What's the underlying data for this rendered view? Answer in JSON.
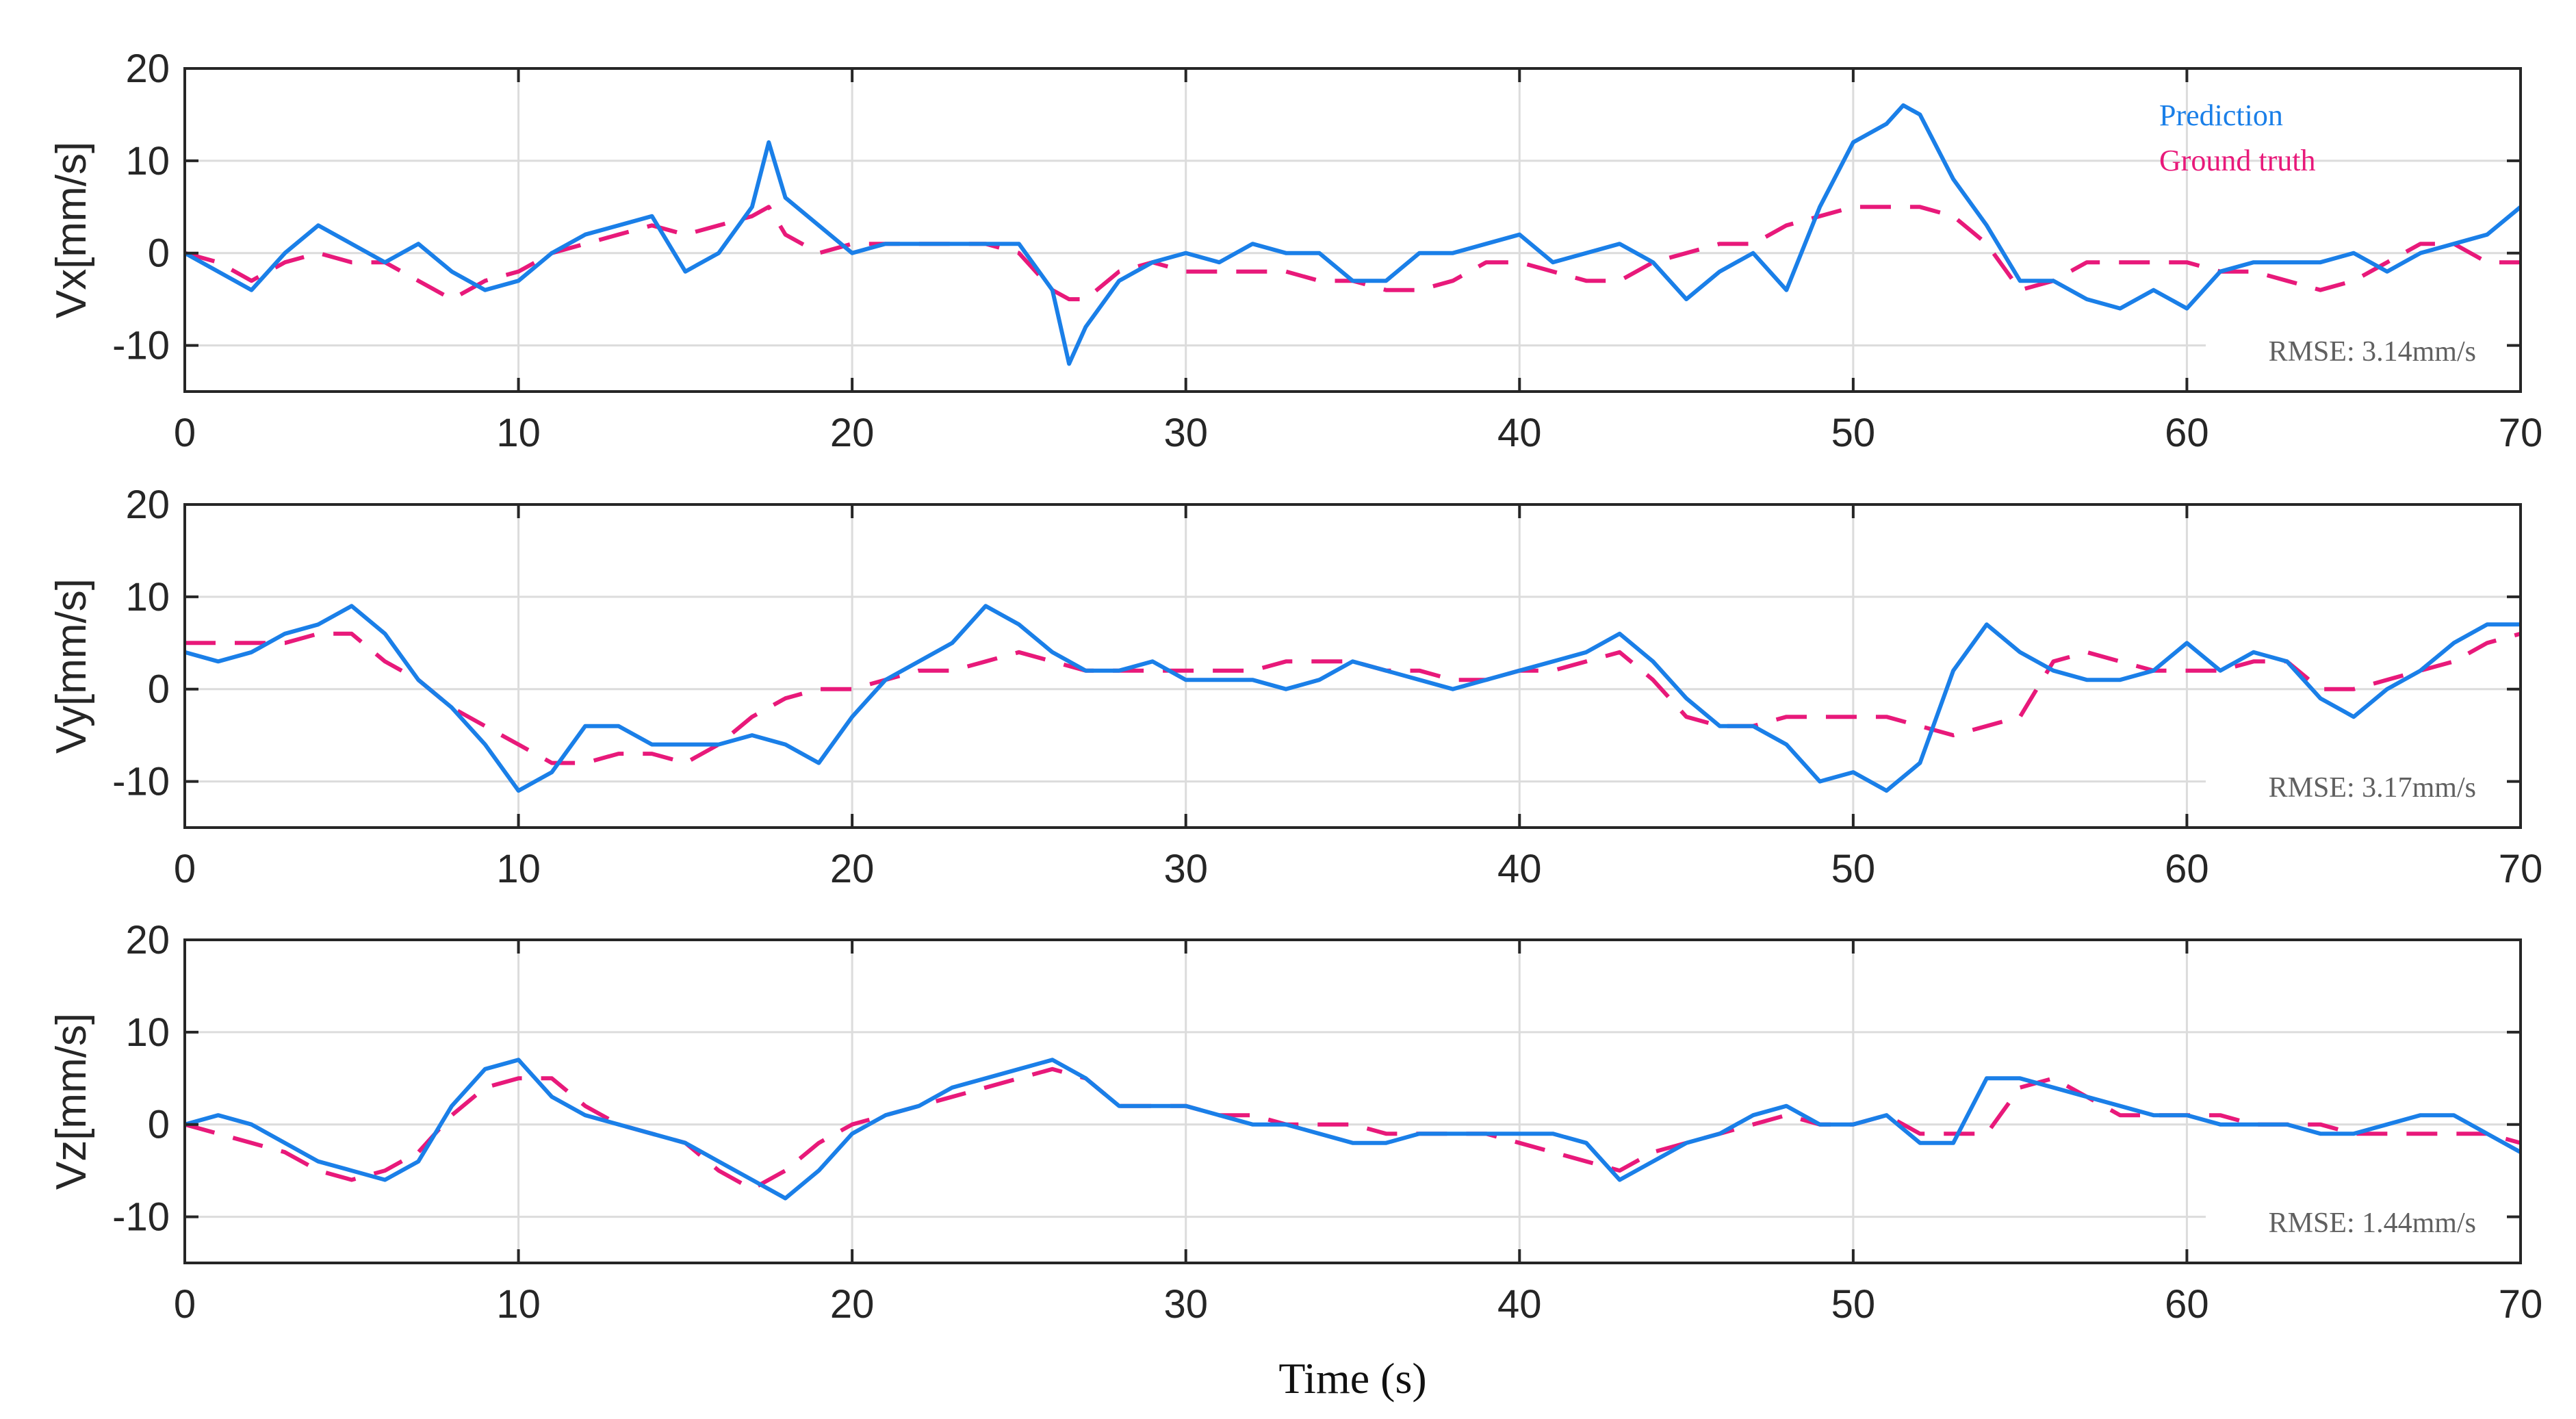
{
  "chart_data": [
    {
      "type": "line",
      "title": "",
      "xlabel": "",
      "ylabel": "Vx[mm/s]",
      "xlim": [
        0,
        70
      ],
      "ylim": [
        -15,
        20
      ],
      "xticks": [
        "0",
        "10",
        "20",
        "30",
        "40",
        "50",
        "60",
        "70"
      ],
      "yticks": [
        "-10",
        "0",
        "10",
        "20"
      ],
      "grid": true,
      "legend": {
        "position": "top-right",
        "entries": [
          "Prediction",
          "Ground truth"
        ]
      },
      "annotation": "RMSE: 3.14mm/s",
      "series": [
        {
          "name": "Prediction",
          "color": "#1a7fe8",
          "style": "solid",
          "x": [
            0,
            1,
            2,
            3,
            4,
            5,
            6,
            7,
            8,
            9,
            10,
            11,
            12,
            13,
            14,
            15,
            16,
            17,
            17.5,
            18,
            19,
            20,
            21,
            22,
            23,
            24,
            25,
            26,
            26.5,
            27,
            28,
            29,
            30,
            31,
            32,
            33,
            34,
            35,
            36,
            37,
            38,
            39,
            40,
            41,
            42,
            43,
            44,
            45,
            46,
            47,
            48,
            49,
            50,
            51,
            51.5,
            52,
            53,
            54,
            55,
            56,
            57,
            58,
            59,
            60,
            61,
            62,
            63,
            64,
            65,
            66,
            67,
            68,
            69,
            70
          ],
          "values": [
            0,
            -2,
            -4,
            0,
            3,
            1,
            -1,
            1,
            -2,
            -4,
            -3,
            0,
            2,
            3,
            4,
            -2,
            0,
            5,
            12,
            6,
            3,
            0,
            1,
            1,
            1,
            1,
            1,
            -4,
            -12,
            -8,
            -3,
            -1,
            0,
            -1,
            1,
            0,
            0,
            -3,
            -3,
            0,
            0,
            1,
            2,
            -1,
            0,
            1,
            -1,
            -5,
            -2,
            0,
            -4,
            5,
            12,
            14,
            16,
            15,
            8,
            3,
            -3,
            -3,
            -5,
            -6,
            -4,
            -6,
            -2,
            -1,
            -1,
            -1,
            0,
            -2,
            0,
            1,
            2,
            5
          ]
        },
        {
          "name": "Ground truth",
          "color": "#e8197a",
          "style": "dashed",
          "x": [
            0,
            1,
            2,
            3,
            4,
            5,
            6,
            7,
            8,
            9,
            10,
            11,
            12,
            13,
            14,
            15,
            16,
            17,
            17.5,
            18,
            19,
            20,
            21,
            22,
            23,
            24,
            25,
            26,
            26.5,
            27,
            28,
            29,
            30,
            31,
            32,
            33,
            34,
            35,
            36,
            37,
            38,
            39,
            40,
            41,
            42,
            43,
            44,
            45,
            46,
            47,
            48,
            49,
            50,
            51,
            51.5,
            52,
            53,
            54,
            55,
            56,
            57,
            58,
            59,
            60,
            61,
            62,
            63,
            64,
            65,
            66,
            67,
            68,
            69,
            70
          ],
          "values": [
            0,
            -1,
            -3,
            -1,
            0,
            -1,
            -1,
            -3,
            -5,
            -3,
            -2,
            0,
            1,
            2,
            3,
            2,
            3,
            4,
            5,
            2,
            0,
            1,
            1,
            1,
            1,
            1,
            0,
            -4,
            -5,
            -5,
            -2,
            -1,
            -2,
            -2,
            -2,
            -2,
            -3,
            -3,
            -4,
            -4,
            -3,
            -1,
            -1,
            -2,
            -3,
            -3,
            -1,
            0,
            1,
            1,
            3,
            4,
            5,
            5,
            5,
            5,
            4,
            1,
            -4,
            -3,
            -1,
            -1,
            -1,
            -1,
            -2,
            -2,
            -3,
            -4,
            -3,
            -1,
            1,
            1,
            -1,
            -1
          ]
        }
      ]
    },
    {
      "type": "line",
      "title": "",
      "xlabel": "",
      "ylabel": "Vy[mm/s]",
      "xlim": [
        0,
        70
      ],
      "ylim": [
        -15,
        20
      ],
      "xticks": [
        "0",
        "10",
        "20",
        "30",
        "40",
        "50",
        "60",
        "70"
      ],
      "yticks": [
        "-10",
        "0",
        "10",
        "20"
      ],
      "grid": true,
      "annotation": "RMSE: 3.17mm/s",
      "series": [
        {
          "name": "Prediction",
          "color": "#1a7fe8",
          "style": "solid",
          "x": [
            0,
            1,
            2,
            3,
            4,
            5,
            6,
            7,
            8,
            9,
            10,
            11,
            12,
            13,
            14,
            15,
            16,
            17,
            18,
            19,
            20,
            21,
            22,
            23,
            24,
            25,
            26,
            27,
            28,
            29,
            30,
            31,
            32,
            33,
            34,
            35,
            36,
            37,
            38,
            39,
            40,
            41,
            42,
            43,
            44,
            45,
            46,
            47,
            48,
            49,
            50,
            51,
            52,
            53,
            54,
            55,
            56,
            57,
            58,
            59,
            60,
            61,
            62,
            63,
            64,
            65,
            66,
            67,
            68,
            69,
            70
          ],
          "values": [
            4,
            3,
            4,
            6,
            7,
            9,
            6,
            1,
            -2,
            -6,
            -11,
            -9,
            -4,
            -4,
            -6,
            -6,
            -6,
            -5,
            -6,
            -8,
            -3,
            1,
            3,
            5,
            9,
            7,
            4,
            2,
            2,
            3,
            1,
            1,
            1,
            0,
            1,
            3,
            2,
            1,
            0,
            1,
            2,
            3,
            4,
            6,
            3,
            -1,
            -4,
            -4,
            -6,
            -10,
            -9,
            -11,
            -8,
            2,
            7,
            4,
            2,
            1,
            1,
            2,
            5,
            2,
            4,
            3,
            -1,
            -3,
            0,
            2,
            5,
            7,
            7
          ]
        },
        {
          "name": "Ground truth",
          "color": "#e8197a",
          "style": "dashed",
          "x": [
            0,
            1,
            2,
            3,
            4,
            5,
            6,
            7,
            8,
            9,
            10,
            11,
            12,
            13,
            14,
            15,
            16,
            17,
            18,
            19,
            20,
            21,
            22,
            23,
            24,
            25,
            26,
            27,
            28,
            29,
            30,
            31,
            32,
            33,
            34,
            35,
            36,
            37,
            38,
            39,
            40,
            41,
            42,
            43,
            44,
            45,
            46,
            47,
            48,
            49,
            50,
            51,
            52,
            53,
            54,
            55,
            56,
            57,
            58,
            59,
            60,
            61,
            62,
            63,
            64,
            65,
            66,
            67,
            68,
            69,
            70
          ],
          "values": [
            5,
            5,
            5,
            5,
            6,
            6,
            3,
            1,
            -2,
            -4,
            -6,
            -8,
            -8,
            -7,
            -7,
            -8,
            -6,
            -3,
            -1,
            0,
            0,
            1,
            2,
            2,
            3,
            4,
            3,
            2,
            2,
            2,
            2,
            2,
            2,
            3,
            3,
            3,
            2,
            2,
            1,
            1,
            2,
            2,
            3,
            4,
            1,
            -3,
            -4,
            -4,
            -3,
            -3,
            -3,
            -3,
            -4,
            -5,
            -4,
            -3,
            3,
            4,
            3,
            2,
            2,
            2,
            3,
            3,
            0,
            0,
            1,
            2,
            3,
            5,
            6
          ]
        }
      ]
    },
    {
      "type": "line",
      "title": "",
      "xlabel": "Time (s)",
      "ylabel": "Vz[mm/s]",
      "xlim": [
        0,
        70
      ],
      "ylim": [
        -15,
        20
      ],
      "xticks": [
        "0",
        "10",
        "20",
        "30",
        "40",
        "50",
        "60",
        "70"
      ],
      "yticks": [
        "-10",
        "0",
        "10",
        "20"
      ],
      "grid": true,
      "annotation": "RMSE: 1.44mm/s",
      "series": [
        {
          "name": "Prediction",
          "color": "#1a7fe8",
          "style": "solid",
          "x": [
            0,
            1,
            2,
            3,
            4,
            5,
            6,
            7,
            8,
            9,
            10,
            11,
            12,
            13,
            14,
            15,
            16,
            17,
            18,
            19,
            20,
            21,
            22,
            23,
            24,
            25,
            26,
            27,
            28,
            29,
            30,
            31,
            32,
            33,
            34,
            35,
            36,
            37,
            38,
            39,
            40,
            41,
            42,
            43,
            44,
            45,
            46,
            47,
            48,
            49,
            50,
            51,
            52,
            53,
            54,
            55,
            56,
            57,
            58,
            59,
            60,
            61,
            62,
            63,
            64,
            65,
            66,
            67,
            68,
            69,
            70
          ],
          "values": [
            0,
            1,
            0,
            -2,
            -4,
            -5,
            -6,
            -4,
            2,
            6,
            7,
            3,
            1,
            0,
            -1,
            -2,
            -4,
            -6,
            -8,
            -5,
            -1,
            1,
            2,
            4,
            5,
            6,
            7,
            5,
            2,
            2,
            2,
            1,
            0,
            0,
            -1,
            -2,
            -2,
            -1,
            -1,
            -1,
            -1,
            -1,
            -2,
            -6,
            -4,
            -2,
            -1,
            1,
            2,
            0,
            0,
            1,
            -2,
            -2,
            5,
            5,
            4,
            3,
            2,
            1,
            1,
            0,
            0,
            0,
            -1,
            -1,
            0,
            1,
            1,
            -1,
            -3
          ]
        },
        {
          "name": "Ground truth",
          "color": "#e8197a",
          "style": "dashed",
          "x": [
            0,
            1,
            2,
            3,
            4,
            5,
            6,
            7,
            8,
            9,
            10,
            11,
            12,
            13,
            14,
            15,
            16,
            17,
            18,
            19,
            20,
            21,
            22,
            23,
            24,
            25,
            26,
            27,
            28,
            29,
            30,
            31,
            32,
            33,
            34,
            35,
            36,
            37,
            38,
            39,
            40,
            41,
            42,
            43,
            44,
            45,
            46,
            47,
            48,
            49,
            50,
            51,
            52,
            53,
            54,
            55,
            56,
            57,
            58,
            59,
            60,
            61,
            62,
            63,
            64,
            65,
            66,
            67,
            68,
            69,
            70
          ],
          "values": [
            0,
            -1,
            -2,
            -3,
            -5,
            -6,
            -5,
            -3,
            1,
            4,
            5,
            5,
            2,
            0,
            -1,
            -2,
            -5,
            -7,
            -5,
            -2,
            0,
            1,
            2,
            3,
            4,
            5,
            6,
            5,
            2,
            2,
            2,
            1,
            1,
            0,
            0,
            0,
            -1,
            -1,
            -1,
            -1,
            -2,
            -3,
            -4,
            -5,
            -3,
            -2,
            -1,
            0,
            1,
            0,
            0,
            1,
            -1,
            -1,
            -1,
            4,
            5,
            3,
            1,
            1,
            1,
            1,
            0,
            0,
            0,
            -1,
            -1,
            -1,
            -1,
            -1,
            -2
          ]
        }
      ]
    }
  ]
}
